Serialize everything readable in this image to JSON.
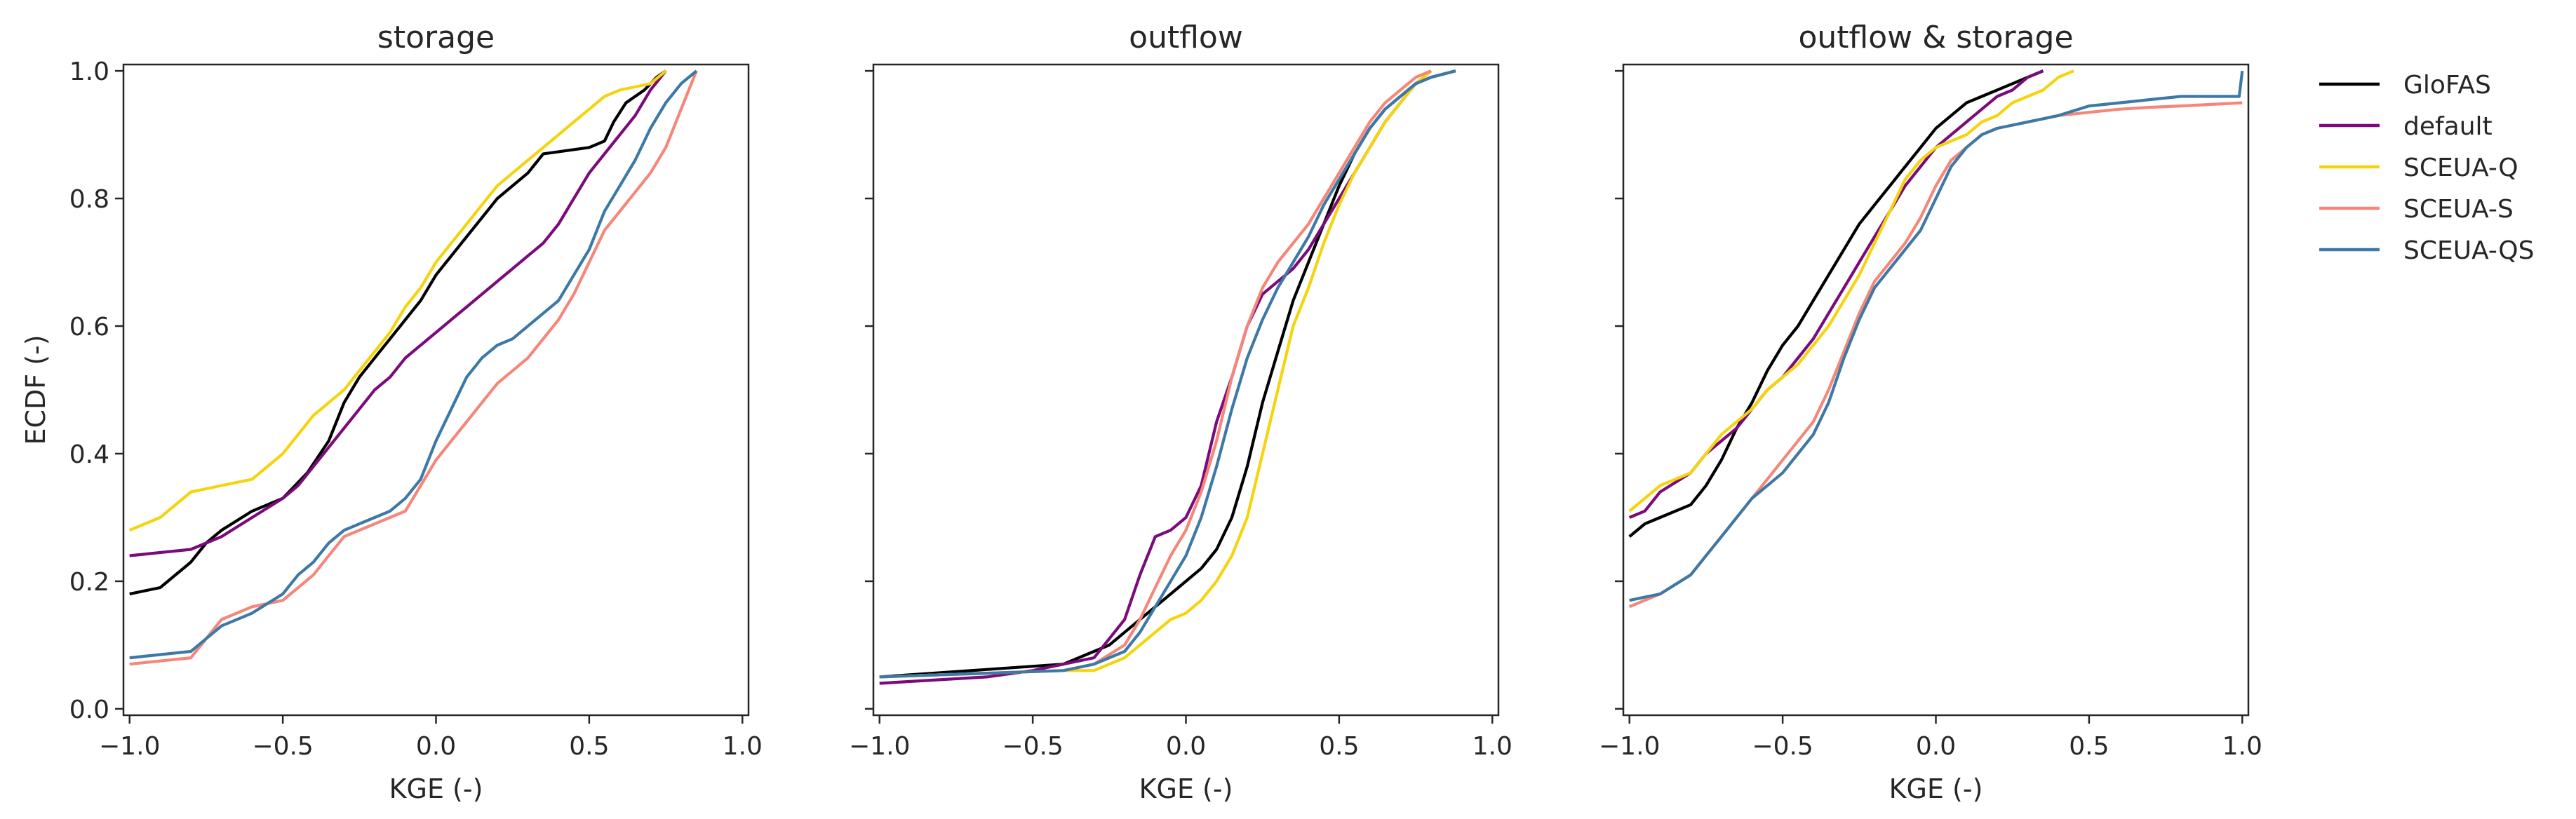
{
  "chart_data": [
    {
      "type": "line",
      "title": "storage",
      "xlabel": "KGE (-)",
      "ylabel": "ECDF (-)",
      "xlim": [
        -1.02,
        1.02
      ],
      "ylim": [
        -0.01,
        1.01
      ],
      "xticks": [
        -1.0,
        -0.5,
        0.0,
        0.5,
        1.0
      ],
      "yticks": [
        0.0,
        0.2,
        0.4,
        0.6,
        0.8,
        1.0
      ],
      "xtick_labels": [
        "−1.0",
        "−0.5",
        "0.0",
        "0.5",
        "1.0"
      ],
      "ytick_labels": [
        "0.0",
        "0.2",
        "0.4",
        "0.6",
        "0.8",
        "1.0"
      ],
      "series": [
        {
          "name": "GloFAS",
          "color": "#000000",
          "x": [
            -1.0,
            -0.9,
            -0.85,
            -0.8,
            -0.75,
            -0.7,
            -0.6,
            -0.5,
            -0.42,
            -0.35,
            -0.3,
            -0.25,
            -0.2,
            -0.15,
            -0.1,
            -0.05,
            0.0,
            0.05,
            0.1,
            0.15,
            0.2,
            0.25,
            0.3,
            0.35,
            0.5,
            0.55,
            0.58,
            0.62,
            0.68,
            0.72,
            0.75
          ],
          "y": [
            0.18,
            0.19,
            0.21,
            0.23,
            0.26,
            0.28,
            0.31,
            0.33,
            0.37,
            0.42,
            0.48,
            0.52,
            0.55,
            0.58,
            0.61,
            0.64,
            0.68,
            0.71,
            0.74,
            0.77,
            0.8,
            0.82,
            0.84,
            0.87,
            0.88,
            0.89,
            0.92,
            0.95,
            0.97,
            0.99,
            1.0
          ]
        },
        {
          "name": "default",
          "color": "#7b0a7b",
          "x": [
            -1.0,
            -0.8,
            -0.7,
            -0.6,
            -0.5,
            -0.45,
            -0.4,
            -0.35,
            -0.3,
            -0.25,
            -0.2,
            -0.15,
            -0.1,
            -0.05,
            0.0,
            0.05,
            0.1,
            0.15,
            0.2,
            0.25,
            0.3,
            0.35,
            0.4,
            0.45,
            0.5,
            0.55,
            0.6,
            0.65,
            0.7,
            0.75
          ],
          "y": [
            0.24,
            0.25,
            0.27,
            0.3,
            0.33,
            0.35,
            0.38,
            0.41,
            0.44,
            0.47,
            0.5,
            0.52,
            0.55,
            0.57,
            0.59,
            0.61,
            0.63,
            0.65,
            0.67,
            0.69,
            0.71,
            0.73,
            0.76,
            0.8,
            0.84,
            0.87,
            0.9,
            0.93,
            0.97,
            1.0
          ]
        },
        {
          "name": "SCEUA-Q",
          "color": "#f5d40f",
          "x": [
            -1.0,
            -0.9,
            -0.85,
            -0.8,
            -0.7,
            -0.6,
            -0.55,
            -0.5,
            -0.45,
            -0.4,
            -0.35,
            -0.3,
            -0.25,
            -0.2,
            -0.15,
            -0.1,
            -0.05,
            0.0,
            0.05,
            0.1,
            0.15,
            0.2,
            0.25,
            0.3,
            0.35,
            0.4,
            0.45,
            0.5,
            0.55,
            0.6,
            0.7,
            0.75
          ],
          "y": [
            0.28,
            0.3,
            0.32,
            0.34,
            0.35,
            0.36,
            0.38,
            0.4,
            0.43,
            0.46,
            0.48,
            0.5,
            0.53,
            0.56,
            0.59,
            0.63,
            0.66,
            0.7,
            0.73,
            0.76,
            0.79,
            0.82,
            0.84,
            0.86,
            0.88,
            0.9,
            0.92,
            0.94,
            0.96,
            0.97,
            0.98,
            1.0
          ]
        },
        {
          "name": "SCEUA-S",
          "color": "#f4877a",
          "x": [
            -1.0,
            -0.8,
            -0.75,
            -0.7,
            -0.6,
            -0.5,
            -0.45,
            -0.4,
            -0.35,
            -0.3,
            -0.25,
            -0.2,
            -0.15,
            -0.1,
            -0.05,
            0.0,
            0.05,
            0.1,
            0.15,
            0.2,
            0.25,
            0.3,
            0.35,
            0.4,
            0.45,
            0.5,
            0.55,
            0.6,
            0.65,
            0.7,
            0.75,
            0.8,
            0.85
          ],
          "y": [
            0.07,
            0.08,
            0.11,
            0.14,
            0.16,
            0.17,
            0.19,
            0.21,
            0.24,
            0.27,
            0.28,
            0.29,
            0.3,
            0.31,
            0.35,
            0.39,
            0.42,
            0.45,
            0.48,
            0.51,
            0.53,
            0.55,
            0.58,
            0.61,
            0.65,
            0.7,
            0.75,
            0.78,
            0.81,
            0.84,
            0.88,
            0.94,
            1.0
          ]
        },
        {
          "name": "SCEUA-QS",
          "color": "#3d79a6",
          "x": [
            -1.0,
            -0.8,
            -0.75,
            -0.7,
            -0.6,
            -0.5,
            -0.45,
            -0.4,
            -0.35,
            -0.3,
            -0.25,
            -0.2,
            -0.15,
            -0.1,
            -0.05,
            0.0,
            0.05,
            0.1,
            0.15,
            0.2,
            0.25,
            0.3,
            0.35,
            0.4,
            0.45,
            0.5,
            0.55,
            0.6,
            0.65,
            0.7,
            0.75,
            0.8,
            0.85
          ],
          "y": [
            0.08,
            0.09,
            0.11,
            0.13,
            0.15,
            0.18,
            0.21,
            0.23,
            0.26,
            0.28,
            0.29,
            0.3,
            0.31,
            0.33,
            0.36,
            0.42,
            0.47,
            0.52,
            0.55,
            0.57,
            0.58,
            0.6,
            0.62,
            0.64,
            0.68,
            0.72,
            0.78,
            0.82,
            0.86,
            0.91,
            0.95,
            0.98,
            1.0
          ]
        }
      ]
    },
    {
      "type": "line",
      "title": "outflow",
      "xlabel": "KGE (-)",
      "ylabel": "",
      "xlim": [
        -1.02,
        1.02
      ],
      "ylim": [
        -0.01,
        1.01
      ],
      "xticks": [
        -1.0,
        -0.5,
        0.0,
        0.5,
        1.0
      ],
      "yticks": [
        0.0,
        0.2,
        0.4,
        0.6,
        0.8,
        1.0
      ],
      "xtick_labels": [
        "−1.0",
        "−0.5",
        "0.0",
        "0.5",
        "1.0"
      ],
      "ytick_labels": [],
      "series": [
        {
          "name": "GloFAS",
          "color": "#000000",
          "x": [
            -1.0,
            -0.4,
            -0.35,
            -0.3,
            -0.25,
            -0.2,
            -0.15,
            -0.1,
            -0.05,
            0.0,
            0.05,
            0.1,
            0.15,
            0.2,
            0.25,
            0.3,
            0.35,
            0.4,
            0.45,
            0.5,
            0.55,
            0.6,
            0.65,
            0.7,
            0.75,
            0.8,
            0.88
          ],
          "y": [
            0.05,
            0.07,
            0.08,
            0.09,
            0.1,
            0.12,
            0.14,
            0.16,
            0.18,
            0.2,
            0.22,
            0.25,
            0.3,
            0.38,
            0.48,
            0.56,
            0.64,
            0.7,
            0.76,
            0.82,
            0.87,
            0.91,
            0.94,
            0.96,
            0.98,
            0.99,
            1.0
          ]
        },
        {
          "name": "default",
          "color": "#7b0a7b",
          "x": [
            -1.0,
            -0.65,
            -0.5,
            -0.4,
            -0.3,
            -0.25,
            -0.2,
            -0.15,
            -0.1,
            -0.05,
            0.0,
            0.05,
            0.1,
            0.15,
            0.2,
            0.25,
            0.3,
            0.35,
            0.4,
            0.45,
            0.5,
            0.55,
            0.6,
            0.65,
            0.7,
            0.75,
            0.8
          ],
          "y": [
            0.04,
            0.05,
            0.06,
            0.07,
            0.08,
            0.11,
            0.14,
            0.21,
            0.27,
            0.28,
            0.3,
            0.35,
            0.45,
            0.52,
            0.6,
            0.65,
            0.67,
            0.69,
            0.72,
            0.76,
            0.8,
            0.84,
            0.88,
            0.92,
            0.95,
            0.98,
            1.0
          ]
        },
        {
          "name": "SCEUA-Q",
          "color": "#f5d40f",
          "x": [
            -1.0,
            -0.4,
            -0.3,
            -0.2,
            -0.15,
            -0.1,
            -0.05,
            0.0,
            0.05,
            0.1,
            0.15,
            0.2,
            0.25,
            0.3,
            0.35,
            0.4,
            0.45,
            0.5,
            0.55,
            0.6,
            0.65,
            0.7,
            0.75,
            0.8
          ],
          "y": [
            0.05,
            0.06,
            0.06,
            0.08,
            0.1,
            0.12,
            0.14,
            0.15,
            0.17,
            0.2,
            0.24,
            0.3,
            0.4,
            0.5,
            0.6,
            0.66,
            0.73,
            0.79,
            0.84,
            0.88,
            0.92,
            0.95,
            0.98,
            1.0
          ]
        },
        {
          "name": "SCEUA-S",
          "color": "#f4877a",
          "x": [
            -1.0,
            -0.4,
            -0.3,
            -0.2,
            -0.15,
            -0.1,
            -0.05,
            0.0,
            0.05,
            0.1,
            0.15,
            0.2,
            0.25,
            0.3,
            0.35,
            0.4,
            0.45,
            0.5,
            0.55,
            0.6,
            0.65,
            0.7,
            0.75,
            0.8
          ],
          "y": [
            0.05,
            0.06,
            0.07,
            0.1,
            0.14,
            0.19,
            0.24,
            0.28,
            0.34,
            0.42,
            0.52,
            0.6,
            0.66,
            0.7,
            0.73,
            0.76,
            0.8,
            0.84,
            0.88,
            0.92,
            0.95,
            0.97,
            0.99,
            1.0
          ]
        },
        {
          "name": "SCEUA-QS",
          "color": "#3d79a6",
          "x": [
            -1.0,
            -0.4,
            -0.3,
            -0.2,
            -0.15,
            -0.1,
            -0.05,
            0.0,
            0.05,
            0.1,
            0.15,
            0.2,
            0.25,
            0.3,
            0.35,
            0.4,
            0.45,
            0.5,
            0.55,
            0.6,
            0.65,
            0.7,
            0.75,
            0.8,
            0.88
          ],
          "y": [
            0.05,
            0.06,
            0.07,
            0.09,
            0.12,
            0.16,
            0.2,
            0.24,
            0.3,
            0.38,
            0.47,
            0.55,
            0.61,
            0.66,
            0.7,
            0.74,
            0.79,
            0.83,
            0.87,
            0.91,
            0.94,
            0.96,
            0.98,
            0.99,
            1.0
          ]
        }
      ]
    },
    {
      "type": "line",
      "title": "outflow & storage",
      "xlabel": "KGE (-)",
      "ylabel": "",
      "xlim": [
        -1.02,
        1.02
      ],
      "ylim": [
        -0.01,
        1.01
      ],
      "xticks": [
        -1.0,
        -0.5,
        0.0,
        0.5,
        1.0
      ],
      "yticks": [
        0.0,
        0.2,
        0.4,
        0.6,
        0.8,
        1.0
      ],
      "xtick_labels": [
        "−1.0",
        "−0.5",
        "0.0",
        "0.5",
        "1.0"
      ],
      "ytick_labels": [],
      "series": [
        {
          "name": "GloFAS",
          "color": "#000000",
          "x": [
            -1.0,
            -0.95,
            -0.9,
            -0.8,
            -0.75,
            -0.7,
            -0.65,
            -0.6,
            -0.55,
            -0.5,
            -0.45,
            -0.4,
            -0.35,
            -0.3,
            -0.25,
            -0.2,
            -0.15,
            -0.1,
            -0.05,
            0.0,
            0.05,
            0.1,
            0.15,
            0.2,
            0.25,
            0.3,
            0.35
          ],
          "y": [
            0.27,
            0.29,
            0.3,
            0.32,
            0.35,
            0.39,
            0.44,
            0.48,
            0.53,
            0.57,
            0.6,
            0.64,
            0.68,
            0.72,
            0.76,
            0.79,
            0.82,
            0.85,
            0.88,
            0.91,
            0.93,
            0.95,
            0.96,
            0.97,
            0.98,
            0.99,
            1.0
          ]
        },
        {
          "name": "default",
          "color": "#7b0a7b",
          "x": [
            -1.0,
            -0.95,
            -0.9,
            -0.8,
            -0.75,
            -0.7,
            -0.65,
            -0.6,
            -0.55,
            -0.5,
            -0.45,
            -0.4,
            -0.35,
            -0.3,
            -0.25,
            -0.2,
            -0.15,
            -0.1,
            -0.05,
            0.0,
            0.05,
            0.1,
            0.15,
            0.2,
            0.25,
            0.3,
            0.35
          ],
          "y": [
            0.3,
            0.31,
            0.34,
            0.37,
            0.4,
            0.42,
            0.44,
            0.47,
            0.5,
            0.52,
            0.55,
            0.58,
            0.62,
            0.66,
            0.7,
            0.74,
            0.78,
            0.82,
            0.85,
            0.88,
            0.9,
            0.92,
            0.94,
            0.96,
            0.97,
            0.99,
            1.0
          ]
        },
        {
          "name": "SCEUA-Q",
          "color": "#f5d40f",
          "x": [
            -1.0,
            -0.95,
            -0.9,
            -0.8,
            -0.75,
            -0.7,
            -0.65,
            -0.6,
            -0.55,
            -0.5,
            -0.45,
            -0.4,
            -0.35,
            -0.3,
            -0.25,
            -0.2,
            -0.15,
            -0.1,
            -0.05,
            0.0,
            0.05,
            0.1,
            0.15,
            0.2,
            0.25,
            0.3,
            0.35,
            0.4,
            0.45
          ],
          "y": [
            0.31,
            0.33,
            0.35,
            0.37,
            0.4,
            0.43,
            0.45,
            0.47,
            0.5,
            0.52,
            0.54,
            0.57,
            0.6,
            0.64,
            0.68,
            0.73,
            0.78,
            0.83,
            0.86,
            0.88,
            0.89,
            0.9,
            0.92,
            0.93,
            0.95,
            0.96,
            0.97,
            0.99,
            1.0
          ]
        },
        {
          "name": "SCEUA-S",
          "color": "#f4877a",
          "x": [
            -1.0,
            -0.9,
            -0.8,
            -0.75,
            -0.7,
            -0.65,
            -0.6,
            -0.55,
            -0.5,
            -0.45,
            -0.4,
            -0.35,
            -0.3,
            -0.25,
            -0.2,
            -0.15,
            -0.1,
            -0.05,
            0.0,
            0.05,
            0.1,
            0.15,
            0.2,
            0.3,
            0.4,
            0.5,
            0.6,
            0.7,
            0.8,
            1.0
          ],
          "y": [
            0.16,
            0.18,
            0.21,
            0.24,
            0.27,
            0.3,
            0.33,
            0.36,
            0.39,
            0.42,
            0.45,
            0.5,
            0.56,
            0.62,
            0.67,
            0.7,
            0.73,
            0.77,
            0.82,
            0.86,
            0.88,
            0.9,
            0.91,
            0.92,
            0.93,
            0.935,
            0.94,
            0.943,
            0.945,
            0.95
          ]
        },
        {
          "name": "SCEUA-QS",
          "color": "#3d79a6",
          "x": [
            -1.0,
            -0.9,
            -0.8,
            -0.75,
            -0.7,
            -0.65,
            -0.6,
            -0.55,
            -0.5,
            -0.45,
            -0.4,
            -0.35,
            -0.3,
            -0.25,
            -0.2,
            -0.15,
            -0.1,
            -0.05,
            0.0,
            0.05,
            0.1,
            0.15,
            0.2,
            0.3,
            0.4,
            0.5,
            0.6,
            0.7,
            0.8,
            0.99,
            1.0
          ],
          "y": [
            0.17,
            0.18,
            0.21,
            0.24,
            0.27,
            0.3,
            0.33,
            0.35,
            0.37,
            0.4,
            0.43,
            0.48,
            0.55,
            0.61,
            0.66,
            0.69,
            0.72,
            0.75,
            0.8,
            0.85,
            0.88,
            0.9,
            0.91,
            0.92,
            0.93,
            0.945,
            0.95,
            0.955,
            0.96,
            0.96,
            1.0
          ]
        }
      ]
    }
  ],
  "legend": {
    "placement": "right, outside plots",
    "entries": [
      {
        "label": "GloFAS",
        "color": "#000000"
      },
      {
        "label": "default",
        "color": "#7b0a7b"
      },
      {
        "label": "SCEUA-Q",
        "color": "#f5d40f"
      },
      {
        "label": "SCEUA-S",
        "color": "#f4877a"
      },
      {
        "label": "SCEUA-QS",
        "color": "#3d79a6"
      }
    ]
  }
}
